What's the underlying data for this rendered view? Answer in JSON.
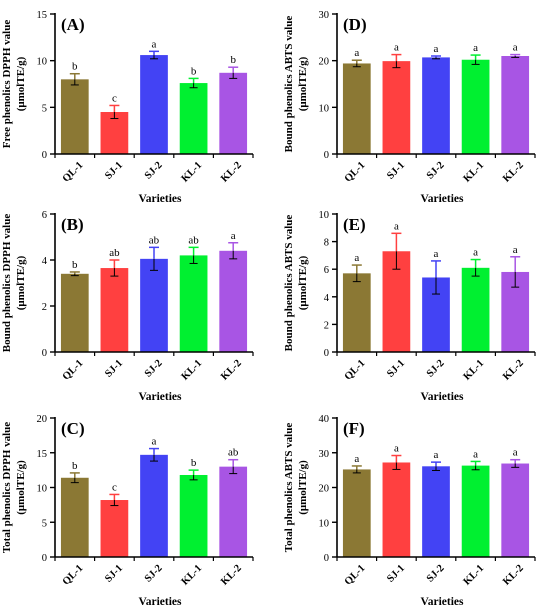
{
  "colors": {
    "QL-1": "#8b7834",
    "SJ-1": "#ff4040",
    "SJ-2": "#4343f4",
    "KL-1": "#00f030",
    "KL-2": "#a855e4",
    "error_bar": "#000000"
  },
  "chart_data": [
    {
      "type": "bar",
      "panel": "(A)",
      "ylabel": [
        "Free phenolics DPPH value",
        "(μmolTE/g)"
      ],
      "xlabel": "Varieties",
      "categories": [
        "QL-1",
        "SJ-1",
        "SJ-2",
        "KL-1",
        "KL-2"
      ],
      "values": [
        8.0,
        4.5,
        10.6,
        7.6,
        8.7
      ],
      "errors": [
        0.6,
        0.7,
        0.4,
        0.5,
        0.6
      ],
      "significance": [
        "b",
        "c",
        "a",
        "b",
        "b"
      ],
      "ylim": [
        0,
        15
      ],
      "yticks": [
        0,
        5,
        10,
        15
      ],
      "grid": false
    },
    {
      "type": "bar",
      "panel": "(B)",
      "ylabel": [
        "Bound phenolics DPPH value",
        "(μmolTE/g)"
      ],
      "xlabel": "Varieties",
      "categories": [
        "QL-1",
        "SJ-1",
        "SJ-2",
        "KL-1",
        "KL-2"
      ],
      "values": [
        3.4,
        3.65,
        4.05,
        4.2,
        4.4
      ],
      "errors": [
        0.08,
        0.35,
        0.5,
        0.35,
        0.35
      ],
      "significance": [
        "b",
        "ab",
        "ab",
        "ab",
        "a"
      ],
      "ylim": [
        0,
        6
      ],
      "yticks": [
        0,
        2,
        4,
        6
      ],
      "grid": false
    },
    {
      "type": "bar",
      "panel": "(C)",
      "ylabel": [
        "Total phenolics DPPH value",
        "(μmolTE/g)"
      ],
      "xlabel": "Varieties",
      "categories": [
        "QL-1",
        "SJ-1",
        "SJ-2",
        "KL-1",
        "KL-2"
      ],
      "values": [
        11.4,
        8.2,
        14.7,
        11.8,
        13.0
      ],
      "errors": [
        0.7,
        0.8,
        0.9,
        0.7,
        1.0
      ],
      "significance": [
        "b",
        "c",
        "a",
        "b",
        "ab"
      ],
      "ylim": [
        0,
        20
      ],
      "yticks": [
        0,
        5,
        10,
        15,
        20
      ],
      "grid": false
    },
    {
      "type": "bar",
      "panel": "(D)",
      "ylabel": [
        "Bound phenolics ABTS value",
        "(μmolTE/g)"
      ],
      "xlabel": "Varieties",
      "categories": [
        "QL-1",
        "SJ-1",
        "SJ-2",
        "KL-1",
        "KL-2"
      ],
      "values": [
        19.4,
        19.9,
        20.7,
        20.2,
        21.0
      ],
      "errors": [
        0.7,
        1.4,
        0.3,
        1.0,
        0.3
      ],
      "significance": [
        "a",
        "a",
        "a",
        "a",
        "a"
      ],
      "ylim": [
        0,
        30
      ],
      "yticks": [
        0,
        10,
        20,
        30
      ],
      "grid": false
    },
    {
      "type": "bar",
      "panel": "(E)",
      "ylabel": [
        "Bound phenolics ABTS value",
        "(μmolTE/g)"
      ],
      "xlabel": "Varieties",
      "categories": [
        "QL-1",
        "SJ-1",
        "SJ-2",
        "KL-1",
        "KL-2"
      ],
      "values": [
        5.7,
        7.3,
        5.4,
        6.1,
        5.8
      ],
      "errors": [
        0.6,
        1.3,
        1.2,
        0.6,
        1.1
      ],
      "significance": [
        "a",
        "a",
        "a",
        "a",
        "a"
      ],
      "ylim": [
        0,
        10
      ],
      "yticks": [
        0,
        2,
        4,
        6,
        8,
        10
      ],
      "grid": false
    },
    {
      "type": "bar",
      "panel": "(F)",
      "ylabel": [
        "Total phenolics ABTS value",
        "(μmolTE/g)"
      ],
      "xlabel": "Varieties",
      "categories": [
        "QL-1",
        "SJ-1",
        "SJ-2",
        "KL-1",
        "KL-2"
      ],
      "values": [
        25.2,
        27.2,
        26.1,
        26.3,
        26.9
      ],
      "errors": [
        1.0,
        2.0,
        1.2,
        1.2,
        1.1
      ],
      "significance": [
        "a",
        "a",
        "a",
        "a",
        "a"
      ],
      "ylim": [
        0,
        40
      ],
      "yticks": [
        0,
        10,
        20,
        30,
        40
      ],
      "grid": false
    }
  ]
}
